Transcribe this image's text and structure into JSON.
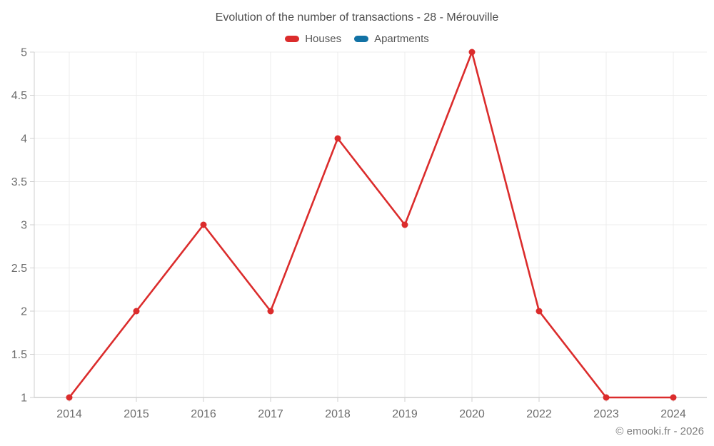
{
  "chart_data": {
    "type": "line",
    "title": "Evolution of the number of transactions - 28 - Mérouville",
    "categories": [
      "2014",
      "2015",
      "2016",
      "2017",
      "2018",
      "2019",
      "2020",
      "2022",
      "2023",
      "2024"
    ],
    "series": [
      {
        "name": "Houses",
        "color": "#db2c2c",
        "values": [
          1,
          2,
          3,
          2,
          4,
          3,
          5,
          2,
          1,
          1
        ]
      },
      {
        "name": "Apartments",
        "color": "#1272a5",
        "values": []
      }
    ],
    "xlabel": "",
    "ylabel": "",
    "ylim": [
      1,
      5
    ],
    "ytick_step": 0.5,
    "grid": true,
    "legend_position": "top"
  },
  "footer": {
    "text": "© emooki.fr - 2026"
  },
  "colors": {
    "background": "#ffffff",
    "grid": "#ececec",
    "axis": "#cfcfcf",
    "tick": "#cfcfcf",
    "axis_label": "#6d6d6d",
    "title_text": "#4e4e4e",
    "legend_text": "#565656",
    "footer_text": "#7e7e7e"
  }
}
